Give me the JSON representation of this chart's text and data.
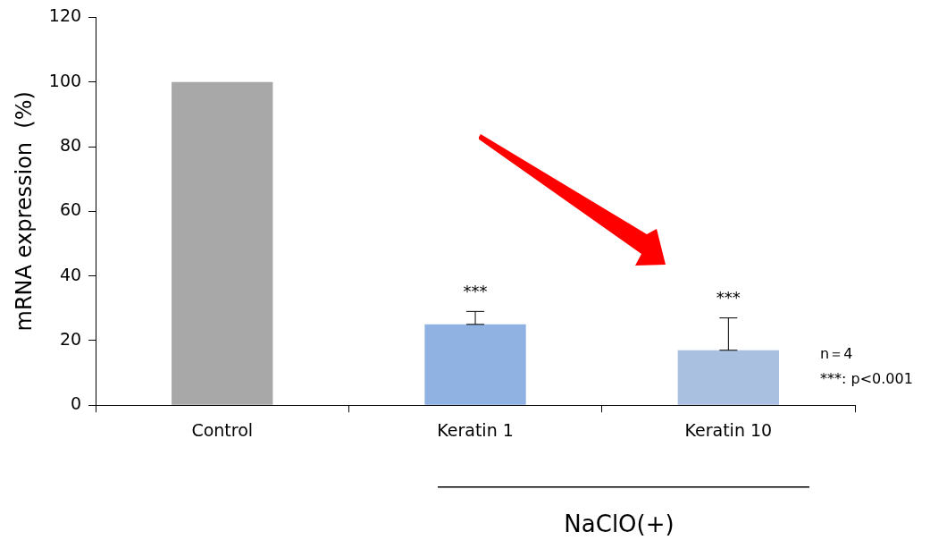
{
  "chart_data": {
    "type": "bar",
    "ylabel": "mRNA expression  (%)",
    "categories": [
      "Control",
      "Keratin 1",
      "Keratin 10"
    ],
    "values": [
      100,
      25,
      17
    ],
    "colors": [
      "#a8a8a8",
      "#8fb2e2",
      "#a9c0e0"
    ],
    "errors": [
      null,
      [
        25,
        29
      ],
      [
        17,
        27
      ]
    ],
    "ylim": [
      0,
      120
    ],
    "yticks": [
      0,
      20,
      40,
      60,
      80,
      100,
      120
    ],
    "grid": false,
    "legend": false,
    "annotations": [
      {
        "text": "***",
        "x": "Keratin 1",
        "y": 29
      },
      {
        "text": "***",
        "x": "Keratin 10",
        "y": 27
      },
      "n＝4",
      "***: p<0.001",
      "NaClO(+)"
    ]
  }
}
